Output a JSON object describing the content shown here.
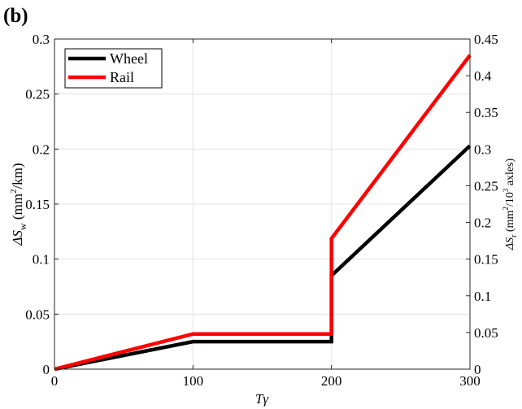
{
  "panel_label": "(b)",
  "legend": {
    "position": "top-left"
  },
  "chart_data": {
    "type": "line",
    "x_label": "Tγ",
    "x_ticks": [
      "0",
      "100",
      "200",
      "300"
    ],
    "xlim": [
      0,
      300
    ],
    "y_label_left": {
      "main": "ΔS",
      "sub": "w",
      "units_pre": " (mm",
      "units_sup": "2",
      "units_post": "/km)"
    },
    "y_label_right": {
      "main": "ΔS",
      "sub": "r",
      "units_pre": " (mm",
      "units_sup": "2",
      "units_mid": "/10",
      "units_sup2": "3",
      "units_post": " axles)"
    },
    "yleft_ticks": [
      "0",
      "0.05",
      "0.1",
      "0.15",
      "0.2",
      "0.25",
      "0.3"
    ],
    "yleft_lim": [
      0,
      0.3
    ],
    "yright_ticks": [
      "0",
      "0.05",
      "0.1",
      "0.15",
      "0.2",
      "0.25",
      "0.3",
      "0.35",
      "0.4",
      "0.45"
    ],
    "yright_lim": [
      0,
      0.45
    ],
    "grid": true,
    "series": [
      {
        "name": "Wheel",
        "axis": "left",
        "color": "#000000",
        "x": [
          0,
          100,
          200,
          200,
          300
        ],
        "y": [
          0,
          0.025,
          0.025,
          0.085,
          0.203
        ]
      },
      {
        "name": "Rail",
        "axis": "right",
        "color": "#ff0000",
        "x": [
          0,
          100,
          200,
          200,
          300
        ],
        "y": [
          0,
          0.048,
          0.048,
          0.178,
          0.428
        ]
      }
    ]
  }
}
